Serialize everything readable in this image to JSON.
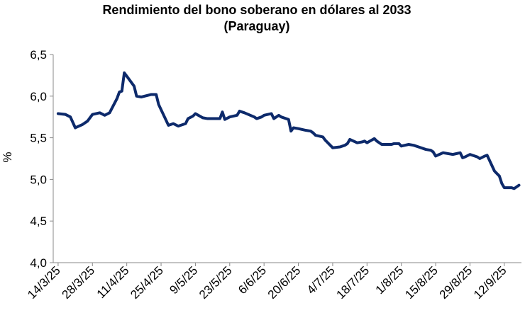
{
  "chart_data": {
    "type": "line",
    "title": "Rendimiento del bono soberano en dólares al 2033",
    "subtitle": "(Paraguay)",
    "y_label": "%",
    "x": [
      "2025-03-14",
      "2025-03-17",
      "2025-03-19",
      "2025-03-21",
      "2025-03-24",
      "2025-03-26",
      "2025-03-28",
      "2025-03-31",
      "2025-04-02",
      "2025-04-04",
      "2025-04-07",
      "2025-04-08",
      "2025-04-09",
      "2025-04-10",
      "2025-04-11",
      "2025-04-14",
      "2025-04-15",
      "2025-04-17",
      "2025-04-21",
      "2025-04-23",
      "2025-04-24",
      "2025-04-28",
      "2025-04-30",
      "2025-05-02",
      "2025-05-05",
      "2025-05-06",
      "2025-05-08",
      "2025-05-09",
      "2025-05-12",
      "2025-05-14",
      "2025-05-16",
      "2025-05-19",
      "2025-05-20",
      "2025-05-21",
      "2025-05-23",
      "2025-05-26",
      "2025-05-27",
      "2025-05-29",
      "2025-06-02",
      "2025-06-03",
      "2025-06-05",
      "2025-06-06",
      "2025-06-09",
      "2025-06-10",
      "2025-06-12",
      "2025-06-13",
      "2025-06-16",
      "2025-06-17",
      "2025-06-18",
      "2025-06-20",
      "2025-06-23",
      "2025-06-25",
      "2025-06-26",
      "2025-06-27",
      "2025-06-30",
      "2025-07-01",
      "2025-07-02",
      "2025-07-03",
      "2025-07-04",
      "2025-07-07",
      "2025-07-09",
      "2025-07-10",
      "2025-07-11",
      "2025-07-14",
      "2025-07-16",
      "2025-07-17",
      "2025-07-18",
      "2025-07-21",
      "2025-07-22",
      "2025-07-24",
      "2025-07-28",
      "2025-07-29",
      "2025-07-31",
      "2025-08-01",
      "2025-08-04",
      "2025-08-06",
      "2025-08-08",
      "2025-08-11",
      "2025-08-13",
      "2025-08-14",
      "2025-08-15",
      "2025-08-18",
      "2025-08-20",
      "2025-08-22",
      "2025-08-25",
      "2025-08-26",
      "2025-08-27",
      "2025-08-29",
      "2025-09-01",
      "2025-09-02",
      "2025-09-04",
      "2025-09-05",
      "2025-09-08",
      "2025-09-09",
      "2025-09-10",
      "2025-09-11",
      "2025-09-12",
      "2025-09-15",
      "2025-09-16",
      "2025-09-17",
      "2025-09-18"
    ],
    "series": [
      {
        "name": "Rendimiento",
        "color": "#0d2a6b",
        "values": [
          5.79,
          5.78,
          5.75,
          5.62,
          5.66,
          5.7,
          5.78,
          5.8,
          5.77,
          5.8,
          5.97,
          6.05,
          6.06,
          6.28,
          6.24,
          6.12,
          6.0,
          5.99,
          6.02,
          6.02,
          5.9,
          5.65,
          5.67,
          5.64,
          5.67,
          5.73,
          5.76,
          5.79,
          5.74,
          5.73,
          5.73,
          5.73,
          5.81,
          5.72,
          5.75,
          5.77,
          5.82,
          5.8,
          5.75,
          5.73,
          5.75,
          5.77,
          5.79,
          5.73,
          5.77,
          5.75,
          5.72,
          5.58,
          5.62,
          5.61,
          5.59,
          5.58,
          5.56,
          5.53,
          5.51,
          5.47,
          5.44,
          5.41,
          5.38,
          5.39,
          5.41,
          5.43,
          5.48,
          5.44,
          5.45,
          5.46,
          5.44,
          5.49,
          5.46,
          5.42,
          5.42,
          5.43,
          5.43,
          5.4,
          5.42,
          5.41,
          5.39,
          5.36,
          5.35,
          5.33,
          5.28,
          5.32,
          5.31,
          5.3,
          5.32,
          5.26,
          5.27,
          5.3,
          5.27,
          5.25,
          5.28,
          5.29,
          5.1,
          5.07,
          5.04,
          4.95,
          4.9,
          4.9,
          4.89,
          4.91,
          4.93
        ]
      }
    ],
    "xlim": [
      "2025-03-12",
      "2025-09-19"
    ],
    "xticks": [
      {
        "value": "2025-03-14",
        "label": "14/3/25"
      },
      {
        "value": "2025-03-28",
        "label": "28/3/25"
      },
      {
        "value": "2025-04-11",
        "label": "11/4/25"
      },
      {
        "value": "2025-04-25",
        "label": "25/4/25"
      },
      {
        "value": "2025-05-09",
        "label": "9/5/25"
      },
      {
        "value": "2025-05-23",
        "label": "23/5/25"
      },
      {
        "value": "2025-06-06",
        "label": "6/6/25"
      },
      {
        "value": "2025-06-20",
        "label": "20/6/25"
      },
      {
        "value": "2025-07-04",
        "label": "4/7/25"
      },
      {
        "value": "2025-07-18",
        "label": "18/7/25"
      },
      {
        "value": "2025-08-01",
        "label": "1/8/25"
      },
      {
        "value": "2025-08-15",
        "label": "15/8/25"
      },
      {
        "value": "2025-08-29",
        "label": "29/8/25"
      },
      {
        "value": "2025-09-12",
        "label": "12/9/25"
      }
    ],
    "ylim": [
      4,
      6.5
    ],
    "yticks": [
      {
        "value": 4,
        "label": "4,0"
      },
      {
        "value": 4.5,
        "label": "4,5"
      },
      {
        "value": 5,
        "label": "5,0"
      },
      {
        "value": 5.5,
        "label": "5,5"
      },
      {
        "value": 6,
        "label": "6,0"
      },
      {
        "value": 6.5,
        "label": "6,5"
      }
    ],
    "grid": false
  }
}
